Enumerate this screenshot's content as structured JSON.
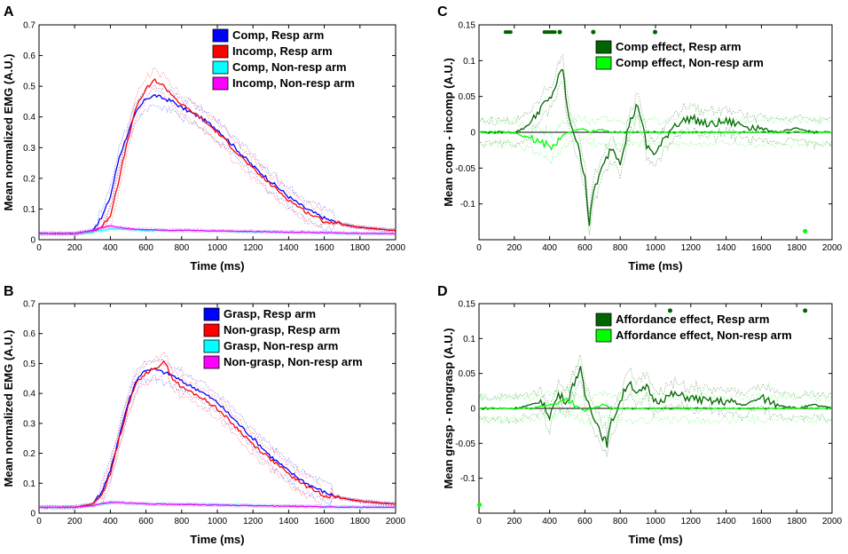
{
  "chart_data": [
    {
      "panel": "A",
      "type": "line",
      "xlabel": "Time (ms)",
      "ylabel": "Mean normalized EMG (A.U.)",
      "xlim": [
        0,
        2000
      ],
      "ylim": [
        0,
        0.7
      ],
      "xticks": [
        0,
        200,
        400,
        600,
        800,
        1000,
        1200,
        1400,
        1600,
        1800,
        2000
      ],
      "yticks": [
        0,
        0.1,
        0.2,
        0.3,
        0.4,
        0.5,
        0.6,
        0.7
      ],
      "ytick_labels": [
        "0",
        "0.1",
        "0.2",
        "0.3",
        "0.4",
        "0.5",
        "0.6",
        "0.7"
      ],
      "legend_position": "top-right",
      "x": [
        0,
        200,
        300,
        350,
        400,
        450,
        500,
        550,
        600,
        650,
        700,
        750,
        800,
        900,
        1000,
        1100,
        1200,
        1300,
        1400,
        1500,
        1600,
        1700,
        1800,
        2000
      ],
      "series": [
        {
          "name": "Comp, Resp arm",
          "color": "#0000ff",
          "values": [
            0.02,
            0.02,
            0.03,
            0.07,
            0.14,
            0.27,
            0.35,
            0.42,
            0.46,
            0.47,
            0.46,
            0.45,
            0.43,
            0.4,
            0.36,
            0.3,
            0.24,
            0.19,
            0.14,
            0.1,
            0.07,
            0.05,
            0.04,
            0.03
          ]
        },
        {
          "name": "Incomp, Resp arm",
          "color": "#ff0000",
          "values": [
            0.02,
            0.02,
            0.025,
            0.04,
            0.08,
            0.2,
            0.33,
            0.44,
            0.49,
            0.52,
            0.5,
            0.47,
            0.44,
            0.4,
            0.35,
            0.29,
            0.23,
            0.18,
            0.13,
            0.09,
            0.06,
            0.05,
            0.04,
            0.03
          ]
        },
        {
          "name": "Comp, Non-resp arm",
          "color": "#00ffff",
          "values": [
            0.02,
            0.02,
            0.025,
            0.03,
            0.035,
            0.035,
            0.033,
            0.032,
            0.03,
            0.03,
            0.03,
            0.03,
            0.03,
            0.03,
            0.028,
            0.027,
            0.026,
            0.025,
            0.024,
            0.023,
            0.022,
            0.021,
            0.02,
            0.02
          ]
        },
        {
          "name": "Incomp, Non-resp arm",
          "color": "#ff00ff",
          "values": [
            0.02,
            0.02,
            0.03,
            0.04,
            0.045,
            0.04,
            0.036,
            0.034,
            0.033,
            0.032,
            0.032,
            0.031,
            0.031,
            0.03,
            0.029,
            0.028,
            0.027,
            0.026,
            0.025,
            0.024,
            0.023,
            0.022,
            0.021,
            0.02
          ]
        }
      ]
    },
    {
      "panel": "B",
      "type": "line",
      "xlabel": "Time (ms)",
      "ylabel": "Mean normalized EMG (A.U.)",
      "xlim": [
        0,
        2000
      ],
      "ylim": [
        0,
        0.7
      ],
      "xticks": [
        0,
        200,
        400,
        600,
        800,
        1000,
        1200,
        1400,
        1600,
        1800,
        2000
      ],
      "yticks": [
        0,
        0.1,
        0.2,
        0.3,
        0.4,
        0.5,
        0.6,
        0.7
      ],
      "ytick_labels": [
        "0",
        "0.1",
        "0.2",
        "0.3",
        "0.4",
        "0.5",
        "0.6",
        "0.7"
      ],
      "legend_position": "top-right",
      "x": [
        0,
        200,
        300,
        350,
        400,
        450,
        500,
        550,
        600,
        650,
        700,
        750,
        800,
        900,
        1000,
        1100,
        1200,
        1300,
        1400,
        1500,
        1600,
        1700,
        1800,
        2000
      ],
      "series": [
        {
          "name": "Grasp, Resp arm",
          "color": "#0000ff",
          "values": [
            0.02,
            0.02,
            0.03,
            0.07,
            0.14,
            0.26,
            0.37,
            0.45,
            0.48,
            0.48,
            0.47,
            0.46,
            0.44,
            0.41,
            0.37,
            0.31,
            0.25,
            0.19,
            0.14,
            0.1,
            0.07,
            0.05,
            0.04,
            0.03
          ]
        },
        {
          "name": "Non-grasp, Resp arm",
          "color": "#ff0000",
          "values": [
            0.02,
            0.02,
            0.03,
            0.06,
            0.13,
            0.25,
            0.36,
            0.44,
            0.47,
            0.48,
            0.51,
            0.45,
            0.42,
            0.39,
            0.35,
            0.29,
            0.23,
            0.18,
            0.13,
            0.09,
            0.06,
            0.05,
            0.04,
            0.03
          ]
        },
        {
          "name": "Grasp, Non-resp arm",
          "color": "#00ffff",
          "values": [
            0.02,
            0.02,
            0.025,
            0.03,
            0.035,
            0.035,
            0.033,
            0.032,
            0.031,
            0.031,
            0.031,
            0.03,
            0.03,
            0.03,
            0.028,
            0.027,
            0.026,
            0.025,
            0.024,
            0.023,
            0.022,
            0.021,
            0.02,
            0.02
          ]
        },
        {
          "name": "Non-grasp, Non-resp arm",
          "color": "#ff00ff",
          "values": [
            0.02,
            0.02,
            0.025,
            0.032,
            0.037,
            0.036,
            0.034,
            0.032,
            0.031,
            0.03,
            0.03,
            0.03,
            0.029,
            0.028,
            0.027,
            0.026,
            0.025,
            0.024,
            0.023,
            0.022,
            0.021,
            0.02,
            0.02,
            0.02
          ]
        }
      ]
    },
    {
      "panel": "C",
      "type": "line",
      "xlabel": "Time (ms)",
      "ylabel": "Mean comp - incomp (A.U.)",
      "xlim": [
        0,
        2000
      ],
      "ylim": [
        -0.15,
        0.15
      ],
      "xticks": [
        0,
        200,
        400,
        600,
        800,
        1000,
        1200,
        1400,
        1600,
        1800,
        2000
      ],
      "yticks": [
        -0.1,
        -0.05,
        0,
        0.05,
        0.1,
        0.15
      ],
      "ytick_labels": [
        "-0.1",
        "-0.05",
        "0",
        "0.05",
        "0.1",
        "0.15"
      ],
      "zero_line": true,
      "legend_position": "top-right",
      "x": [
        0,
        200,
        250,
        300,
        350,
        400,
        450,
        475,
        500,
        550,
        600,
        625,
        650,
        700,
        750,
        800,
        850,
        900,
        950,
        1000,
        1100,
        1200,
        1300,
        1400,
        1500,
        1600,
        1700,
        1800,
        1900,
        2000
      ],
      "series": [
        {
          "name": "Comp effect, Resp arm",
          "color": "#006400",
          "values": [
            0,
            0,
            0.005,
            0.015,
            0.035,
            0.045,
            0.075,
            0.09,
            0.03,
            -0.01,
            -0.06,
            -0.13,
            -0.08,
            -0.05,
            -0.02,
            -0.04,
            0.01,
            0.04,
            -0.02,
            -0.03,
            0.01,
            0.02,
            0.01,
            0.015,
            0.01,
            0.005,
            0,
            0.005,
            0,
            0
          ]
        },
        {
          "name": "Comp effect, Non-resp arm",
          "color": "#00ff00",
          "values": [
            0,
            0,
            -0.005,
            -0.01,
            -0.015,
            -0.02,
            -0.01,
            -0.005,
            0,
            0.003,
            0.005,
            0,
            0.002,
            0.003,
            0,
            0,
            0,
            0,
            0,
            0,
            0,
            0,
            0,
            0,
            0,
            0,
            0,
            0,
            0,
            0
          ]
        }
      ],
      "significance_markers": [
        {
          "series": "Comp effect, Resp arm",
          "x_start": 150,
          "x_end": 180,
          "y": 0.14
        },
        {
          "series": "Comp effect, Resp arm",
          "x_start": 370,
          "x_end": 430,
          "y": 0.14
        },
        {
          "series": "Comp effect, Resp arm",
          "x_start": 455,
          "x_end": 460,
          "y": 0.14
        },
        {
          "series": "Comp effect, Resp arm",
          "x_start": 645,
          "x_end": 650,
          "y": 0.14
        },
        {
          "series": "Comp effect, Resp arm",
          "x_start": 995,
          "x_end": 1000,
          "y": 0.14
        },
        {
          "series": "Comp effect, Non-resp arm",
          "x_start": 1845,
          "x_end": 1850,
          "y": -0.138
        }
      ]
    },
    {
      "panel": "D",
      "type": "line",
      "xlabel": "Time (ms)",
      "ylabel": "Mean grasp - nongrasp (A.U.)",
      "xlim": [
        0,
        2000
      ],
      "ylim": [
        -0.15,
        0.15
      ],
      "xticks": [
        0,
        200,
        400,
        600,
        800,
        1000,
        1200,
        1400,
        1600,
        1800,
        2000
      ],
      "yticks": [
        -0.1,
        -0.05,
        0,
        0.05,
        0.1,
        0.15
      ],
      "ytick_labels": [
        "-0.1",
        "-0.05",
        "0",
        "0.05",
        "0.1",
        "0.15"
      ],
      "zero_line": true,
      "legend_position": "top-right",
      "x": [
        0,
        200,
        300,
        350,
        400,
        450,
        500,
        550,
        575,
        600,
        650,
        700,
        725,
        750,
        800,
        850,
        900,
        950,
        1000,
        1100,
        1200,
        1300,
        1400,
        1500,
        1600,
        1700,
        1800,
        1900,
        2000
      ],
      "series": [
        {
          "name": "Affordance effect, Resp arm",
          "color": "#006400",
          "values": [
            0,
            0,
            0.005,
            0.01,
            -0.01,
            0.02,
            0.01,
            0.045,
            0.055,
            0.02,
            -0.01,
            -0.04,
            -0.05,
            -0.02,
            0.01,
            0.04,
            0.02,
            0.03,
            0.01,
            0.02,
            0.015,
            0.01,
            0.01,
            0.005,
            0.015,
            0.005,
            0,
            0.005,
            0
          ]
        },
        {
          "name": "Affordance effect, Non-resp arm",
          "color": "#00ff00",
          "values": [
            0,
            0,
            0,
            0.003,
            0.005,
            0.008,
            0.01,
            0.005,
            0,
            -0.003,
            0,
            0.005,
            0.003,
            0,
            0,
            0,
            0,
            0,
            0,
            0,
            0,
            0,
            0,
            0,
            0,
            0,
            0,
            0,
            0
          ]
        }
      ],
      "significance_markers": [
        {
          "series": "Affordance effect, Resp arm",
          "x_start": 1080,
          "x_end": 1085,
          "y": 0.14
        },
        {
          "series": "Affordance effect, Resp arm",
          "x_start": 1845,
          "x_end": 1850,
          "y": 0.14
        },
        {
          "series": "Affordance effect, Non-resp arm",
          "x_start": 0,
          "x_end": 5,
          "y": -0.138
        }
      ]
    }
  ]
}
